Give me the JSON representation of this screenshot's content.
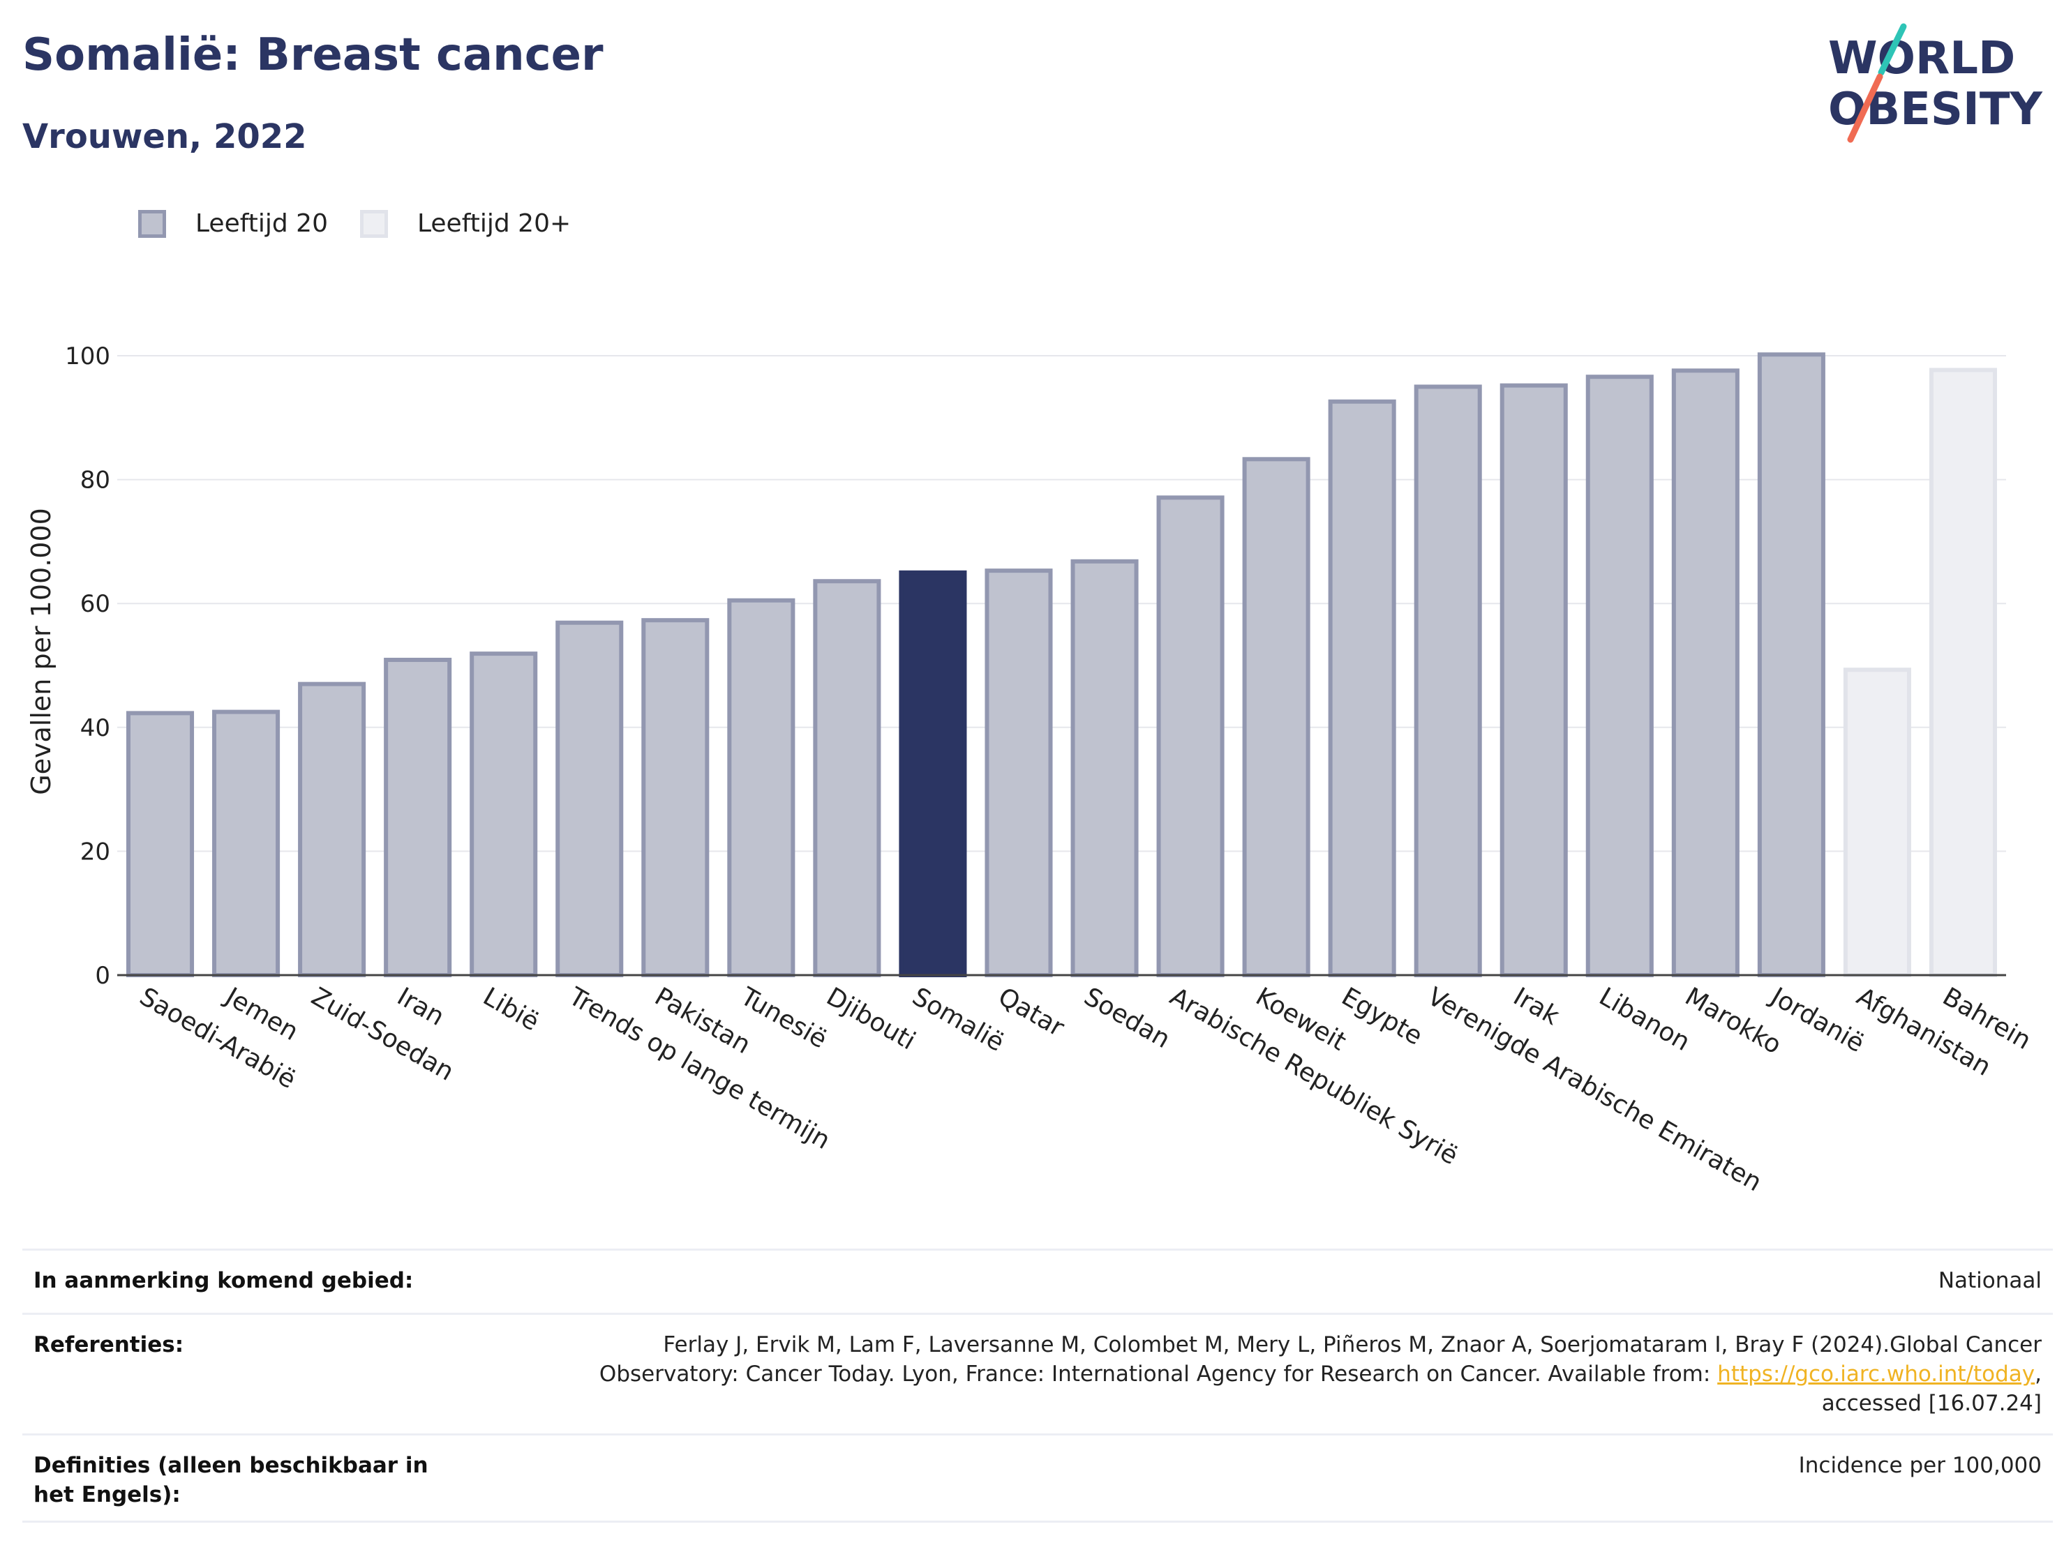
{
  "header": {
    "title": "Somalië: Breast cancer",
    "subtitle": "Vrouwen, 2022"
  },
  "logo": {
    "line1": "WORLD",
    "line2": "OBESITY",
    "accent_teal": "#2ec4b6",
    "accent_coral": "#f06b53",
    "text_color": "#2b3563"
  },
  "legend": [
    {
      "label": "Leeftijd 20",
      "color": "#bfc2cf"
    },
    {
      "label": "Leeftijd 20+",
      "color": "#eeeff3"
    }
  ],
  "colors": {
    "highlight": "#2b3563",
    "series1": "#bfc2cf",
    "series2": "#eeeff3"
  },
  "chart_data": {
    "type": "bar",
    "ylabel": "Gevallen per 100.000",
    "ylim": [
      0,
      100
    ],
    "yticks": [
      0,
      20,
      40,
      60,
      80,
      100
    ],
    "grid": true,
    "legend_position": "top-left",
    "highlight": "Somalië",
    "categories": [
      "Saoedi-Arabië",
      "Jemen",
      "Zuid-Soedan",
      "Iran",
      "Libië",
      "Trends op lange termijn",
      "Pakistan",
      "Tunesië",
      "Djibouti",
      "Somalië",
      "Qatar",
      "Soedan",
      "Arabische Republiek Syrië",
      "Koeweit",
      "Egypte",
      "Verenigde Arabische Emiraten",
      "Irak",
      "Libanon",
      "Marokko",
      "Jordanië",
      "Afghanistan",
      "Bahrein"
    ],
    "values": [
      42.3,
      42.5,
      47.0,
      50.9,
      51.9,
      56.9,
      57.3,
      60.5,
      63.6,
      65.0,
      65.3,
      66.8,
      77.1,
      83.3,
      92.6,
      95.0,
      95.2,
      96.6,
      97.6,
      100.2,
      49.3,
      97.7
    ],
    "series_index": [
      0,
      0,
      0,
      0,
      0,
      0,
      0,
      0,
      0,
      0,
      0,
      0,
      0,
      0,
      0,
      0,
      0,
      0,
      0,
      0,
      1,
      1
    ]
  },
  "info": {
    "area_label": "In aanmerking komend gebied:",
    "area_value": "Nationaal",
    "ref_label": "Referenties:",
    "ref_text_1": "Ferlay J, Ervik M, Lam F, Laversanne M, Colombet M, Mery L, Piñeros M, Znaor A, Soerjomataram I, Bray F (2024).Global Cancer",
    "ref_text_2": "Observatory: Cancer Today. Lyon, France: International Agency for Research on Cancer. Available from: ",
    "ref_link": "https://gco.iarc.who.int/today",
    "ref_text_3": ",",
    "ref_text_4": "accessed [16.07.24]",
    "def_label": "Definities (alleen beschikbaar in het Engels):",
    "def_value": "Incidence per 100,000"
  }
}
